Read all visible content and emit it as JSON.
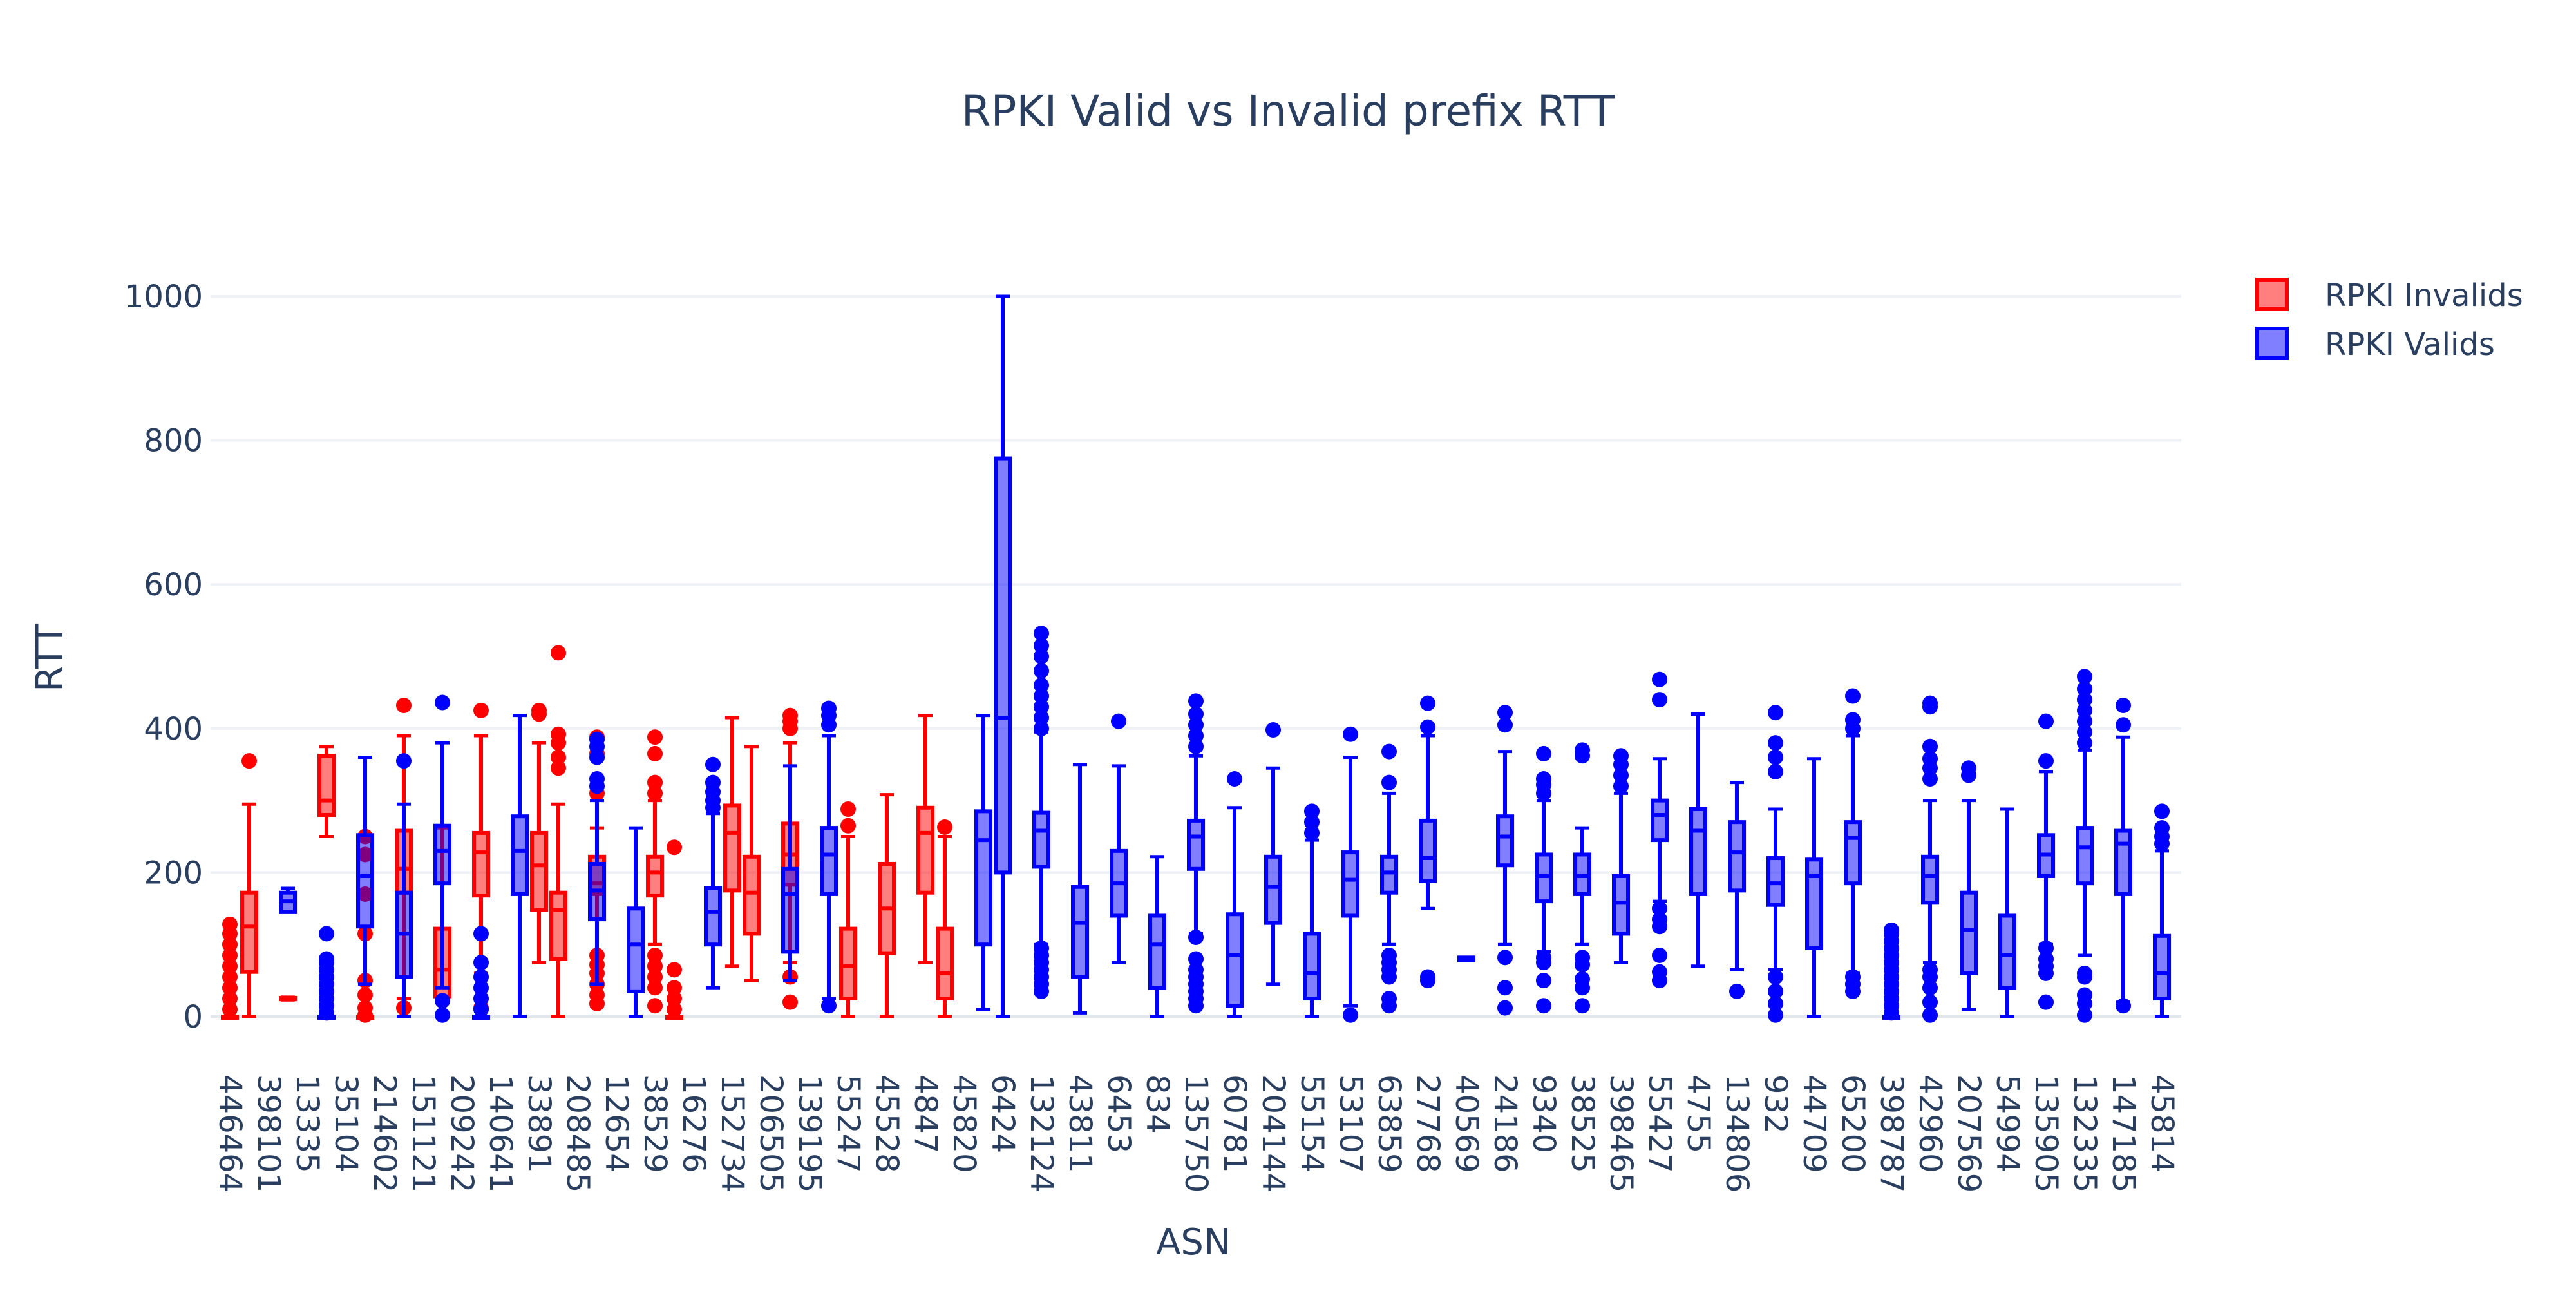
{
  "chart_data": {
    "type": "box",
    "title": "RPKI Valid vs Invalid prefix RTT",
    "xlabel": "ASN",
    "ylabel": "RTT",
    "ylim": [
      0,
      1000
    ],
    "yticks": [
      0,
      200,
      400,
      600,
      800,
      1000
    ],
    "grid": true,
    "legend_position": "top-right",
    "colors": {
      "invalid": "#ff0000",
      "valid": "#0000ff"
    },
    "categories": [
      "446464",
      "398101",
      "13335",
      "35104",
      "214602",
      "151121",
      "209242",
      "140641",
      "33891",
      "208485",
      "12654",
      "38529",
      "16276",
      "152734",
      "206505",
      "139195",
      "55247",
      "45528",
      "4847",
      "45820",
      "6424",
      "132124",
      "43811",
      "6453",
      "834",
      "135750",
      "60781",
      "204144",
      "55154",
      "53107",
      "63859",
      "27768",
      "40569",
      "24186",
      "9340",
      "38525",
      "398465",
      "55427",
      "4755",
      "134806",
      "932",
      "44709",
      "65200",
      "398787",
      "42960",
      "207569",
      "54994",
      "135905",
      "132335",
      "147185",
      "45814"
    ],
    "series": [
      {
        "name": "RPKI Invalids",
        "color": "#ff0000",
        "boxes": [
          {
            "category": "446464",
            "min": 0,
            "q1": 0,
            "median": 0,
            "q3": 0,
            "max": 0,
            "outliers": [
              10,
              25,
              40,
              55,
              70,
              85,
              100,
              115,
              128
            ]
          },
          {
            "category": "398101",
            "min": 0,
            "q1": 62,
            "median": 125,
            "q3": 172,
            "max": 295,
            "outliers": [
              355
            ]
          },
          {
            "category": "13335",
            "min": 23,
            "q1": 24,
            "median": 25,
            "q3": 26,
            "max": 27,
            "outliers": []
          },
          {
            "category": "35104",
            "min": 250,
            "q1": 280,
            "median": 300,
            "q3": 362,
            "max": 375,
            "outliers": []
          },
          {
            "category": "214602",
            "min": 0,
            "q1": 0,
            "median": 0,
            "q3": 0,
            "max": 0,
            "outliers": [
              2,
              12,
              30,
              50,
              115,
              170,
              225,
              250
            ]
          },
          {
            "category": "151121",
            "min": 25,
            "q1": 172,
            "median": 205,
            "q3": 258,
            "max": 390,
            "outliers": [
              12,
              432
            ]
          },
          {
            "category": "209242",
            "min": 0,
            "q1": 28,
            "median": 65,
            "q3": 122,
            "max": 262,
            "outliers": []
          },
          {
            "category": "140641",
            "min": 60,
            "q1": 168,
            "median": 228,
            "q3": 255,
            "max": 390,
            "outliers": [
              12,
              425
            ]
          },
          {
            "category": "33891",
            "min": 75,
            "q1": 148,
            "median": 210,
            "q3": 255,
            "max": 380,
            "outliers": [
              420,
              425
            ]
          },
          {
            "category": "208485",
            "min": 0,
            "q1": 80,
            "median": 148,
            "q3": 172,
            "max": 295,
            "outliers": [
              345,
              360,
              380,
              392,
              505
            ]
          },
          {
            "category": "12654",
            "min": 15,
            "q1": 170,
            "median": 185,
            "q3": 222,
            "max": 262,
            "outliers": [
              18,
              30,
              45,
              60,
              72,
              85,
              310,
              365,
              388
            ]
          },
          {
            "category": "38529",
            "min": 100,
            "q1": 168,
            "median": 200,
            "q3": 222,
            "max": 300,
            "outliers": [
              15,
              40,
              55,
              70,
              85,
              310,
              325,
              365,
              388
            ]
          },
          {
            "category": "16276",
            "min": 0,
            "q1": 0,
            "median": 0,
            "q3": 0,
            "max": 0,
            "outliers": [
              10,
              25,
              40,
              65,
              235
            ]
          },
          {
            "category": "152734",
            "min": 70,
            "q1": 175,
            "median": 255,
            "q3": 293,
            "max": 415,
            "outliers": []
          },
          {
            "category": "206505",
            "min": 50,
            "q1": 115,
            "median": 172,
            "q3": 222,
            "max": 375,
            "outliers": []
          },
          {
            "category": "139195",
            "min": 75,
            "q1": 183,
            "median": 225,
            "q3": 268,
            "max": 380,
            "outliers": [
              20,
              55,
              400,
              410,
              418
            ]
          },
          {
            "category": "55247",
            "min": 0,
            "q1": 25,
            "median": 70,
            "q3": 122,
            "max": 250,
            "outliers": [
              265,
              288
            ]
          },
          {
            "category": "45528",
            "min": 0,
            "q1": 88,
            "median": 150,
            "q3": 212,
            "max": 308,
            "outliers": []
          },
          {
            "category": "4847",
            "min": 75,
            "q1": 172,
            "median": 255,
            "q3": 290,
            "max": 418,
            "outliers": []
          },
          {
            "category": "45820",
            "min": 0,
            "q1": 25,
            "median": 60,
            "q3": 122,
            "max": 250,
            "outliers": [
              263
            ]
          }
        ]
      },
      {
        "name": "RPKI Valids",
        "color": "#0000ff",
        "boxes": [
          {
            "category": "398101",
            "min": 145,
            "q1": 145,
            "median": 160,
            "q3": 172,
            "max": 178,
            "outliers": []
          },
          {
            "category": "13335",
            "min": 0,
            "q1": 0,
            "median": 0,
            "q3": 0,
            "max": 0,
            "outliers": [
              5,
              15,
              25,
              35,
              45,
              55,
              65,
              75,
              80,
              115
            ]
          },
          {
            "category": "35104",
            "min": 45,
            "q1": 125,
            "median": 195,
            "q3": 252,
            "max": 360,
            "outliers": []
          },
          {
            "category": "214602",
            "min": 0,
            "q1": 55,
            "median": 115,
            "q3": 172,
            "max": 295,
            "outliers": [
              355
            ]
          },
          {
            "category": "151121",
            "min": 40,
            "q1": 185,
            "median": 230,
            "q3": 265,
            "max": 380,
            "outliers": [
              2,
              22,
              436
            ]
          },
          {
            "category": "209242",
            "min": 0,
            "q1": 0,
            "median": 0,
            "q3": 0,
            "max": 0,
            "outliers": [
              10,
              25,
              40,
              55,
              75,
              115
            ]
          },
          {
            "category": "140641",
            "min": 0,
            "q1": 170,
            "median": 230,
            "q3": 278,
            "max": 418,
            "outliers": []
          },
          {
            "category": "208485",
            "min": 45,
            "q1": 135,
            "median": 175,
            "q3": 212,
            "max": 300,
            "outliers": [
              320,
              330,
              360,
              375,
              385
            ]
          },
          {
            "category": "12654",
            "min": 0,
            "q1": 35,
            "median": 100,
            "q3": 150,
            "max": 262,
            "outliers": []
          },
          {
            "category": "16276",
            "min": 40,
            "q1": 100,
            "median": 145,
            "q3": 178,
            "max": 282,
            "outliers": [
              290,
              300,
              312,
              325,
              350
            ]
          },
          {
            "category": "206505",
            "min": 50,
            "q1": 90,
            "median": 170,
            "q3": 205,
            "max": 348,
            "outliers": []
          },
          {
            "category": "139195",
            "min": 25,
            "q1": 170,
            "median": 225,
            "q3": 262,
            "max": 390,
            "outliers": [
              15,
              405,
              418,
              428
            ]
          },
          {
            "category": "45820",
            "min": 10,
            "q1": 100,
            "median": 245,
            "q3": 285,
            "max": 418,
            "outliers": []
          },
          {
            "category": "6424",
            "min": 0,
            "q1": 200,
            "median": 415,
            "q3": 775,
            "max": 1000,
            "outliers": []
          },
          {
            "category": "132124",
            "min": 100,
            "q1": 208,
            "median": 258,
            "q3": 283,
            "max": 395,
            "outliers": [
              35,
              45,
              55,
              65,
              75,
              85,
              95,
              400,
              415,
              430,
              445,
              460,
              480,
              500,
              515,
              532
            ]
          },
          {
            "category": "43811",
            "min": 5,
            "q1": 55,
            "median": 130,
            "q3": 180,
            "max": 350,
            "outliers": []
          },
          {
            "category": "6453",
            "min": 75,
            "q1": 140,
            "median": 185,
            "q3": 230,
            "max": 348,
            "outliers": [
              410
            ]
          },
          {
            "category": "834",
            "min": 0,
            "q1": 40,
            "median": 100,
            "q3": 140,
            "max": 222,
            "outliers": []
          },
          {
            "category": "135750",
            "min": 115,
            "q1": 205,
            "median": 250,
            "q3": 272,
            "max": 362,
            "outliers": [
              15,
              25,
              35,
              45,
              55,
              65,
              80,
              110,
              375,
              390,
              405,
              420,
              438
            ]
          },
          {
            "category": "60781",
            "min": 0,
            "q1": 15,
            "median": 85,
            "q3": 142,
            "max": 290,
            "outliers": [
              330
            ]
          },
          {
            "category": "204144",
            "min": 45,
            "q1": 130,
            "median": 180,
            "q3": 222,
            "max": 345,
            "outliers": [
              398
            ]
          },
          {
            "category": "55154",
            "min": 0,
            "q1": 25,
            "median": 60,
            "q3": 115,
            "max": 245,
            "outliers": [
              255,
              270,
              285
            ]
          },
          {
            "category": "53107",
            "min": 15,
            "q1": 140,
            "median": 190,
            "q3": 228,
            "max": 360,
            "outliers": [
              2,
              392
            ]
          },
          {
            "category": "63859",
            "min": 100,
            "q1": 172,
            "median": 200,
            "q3": 222,
            "max": 310,
            "outliers": [
              15,
              25,
              55,
              65,
              75,
              85,
              325,
              368
            ]
          },
          {
            "category": "27768",
            "min": 150,
            "q1": 188,
            "median": 220,
            "q3": 272,
            "max": 390,
            "outliers": [
              50,
              55,
              402,
              435
            ]
          },
          {
            "category": "40569",
            "min": 78,
            "q1": 78,
            "median": 80,
            "q3": 82,
            "max": 82,
            "outliers": []
          },
          {
            "category": "24186",
            "min": 100,
            "q1": 210,
            "median": 250,
            "q3": 278,
            "max": 368,
            "outliers": [
              12,
              40,
              82,
              405,
              422
            ]
          },
          {
            "category": "9340",
            "min": 90,
            "q1": 160,
            "median": 195,
            "q3": 225,
            "max": 300,
            "outliers": [
              15,
              50,
              75,
              82,
              310,
              322,
              330,
              365
            ]
          },
          {
            "category": "38525",
            "min": 100,
            "q1": 170,
            "median": 195,
            "q3": 225,
            "max": 262,
            "outliers": [
              15,
              40,
              52,
              72,
              82,
              362,
              370
            ]
          },
          {
            "category": "398465",
            "min": 75,
            "q1": 115,
            "median": 158,
            "q3": 195,
            "max": 310,
            "outliers": [
              320,
              335,
              350,
              362
            ]
          },
          {
            "category": "55427",
            "min": 160,
            "q1": 245,
            "median": 280,
            "q3": 300,
            "max": 358,
            "outliers": [
              50,
              62,
              85,
              125,
              135,
              150,
              440,
              468
            ]
          },
          {
            "category": "4755",
            "min": 70,
            "q1": 170,
            "median": 258,
            "q3": 288,
            "max": 420,
            "outliers": []
          },
          {
            "category": "134806",
            "min": 65,
            "q1": 175,
            "median": 228,
            "q3": 270,
            "max": 325,
            "outliers": [
              35
            ]
          },
          {
            "category": "932",
            "min": 65,
            "q1": 155,
            "median": 185,
            "q3": 220,
            "max": 288,
            "outliers": [
              2,
              18,
              35,
              55,
              340,
              360,
              380,
              422
            ]
          },
          {
            "category": "44709",
            "min": 0,
            "q1": 95,
            "median": 195,
            "q3": 218,
            "max": 358,
            "outliers": []
          },
          {
            "category": "65200",
            "min": 60,
            "q1": 185,
            "median": 248,
            "q3": 270,
            "max": 390,
            "outliers": [
              35,
              45,
              55,
              400,
              412,
              445
            ]
          },
          {
            "category": "398787",
            "min": 0,
            "q1": 0,
            "median": 0,
            "q3": 0,
            "max": 0,
            "outliers": [
              5,
              15,
              25,
              35,
              45,
              55,
              65,
              75,
              85,
              95,
              105,
              115,
              120
            ]
          },
          {
            "category": "42960",
            "min": 75,
            "q1": 158,
            "median": 195,
            "q3": 222,
            "max": 300,
            "outliers": [
              2,
              20,
              40,
              55,
              65,
              330,
              345,
              358,
              375,
              430,
              435
            ]
          },
          {
            "category": "207569",
            "min": 10,
            "q1": 60,
            "median": 120,
            "q3": 172,
            "max": 300,
            "outliers": [
              335,
              345
            ]
          },
          {
            "category": "54994",
            "min": 0,
            "q1": 40,
            "median": 85,
            "q3": 140,
            "max": 288,
            "outliers": []
          },
          {
            "category": "135905",
            "min": 100,
            "q1": 195,
            "median": 225,
            "q3": 252,
            "max": 340,
            "outliers": [
              20,
              60,
              70,
              80,
              95,
              355,
              410
            ]
          },
          {
            "category": "132335",
            "min": 85,
            "q1": 185,
            "median": 235,
            "q3": 262,
            "max": 370,
            "outliers": [
              2,
              18,
              30,
              55,
              60,
              380,
              395,
              410,
              425,
              440,
              455,
              472
            ]
          },
          {
            "category": "147185",
            "min": 20,
            "q1": 170,
            "median": 240,
            "q3": 258,
            "max": 388,
            "outliers": [
              15,
              405,
              432
            ]
          },
          {
            "category": "45814",
            "min": 0,
            "q1": 25,
            "median": 60,
            "q3": 112,
            "max": 230,
            "outliers": [
              240,
              250,
              262,
              285
            ]
          }
        ]
      }
    ]
  }
}
